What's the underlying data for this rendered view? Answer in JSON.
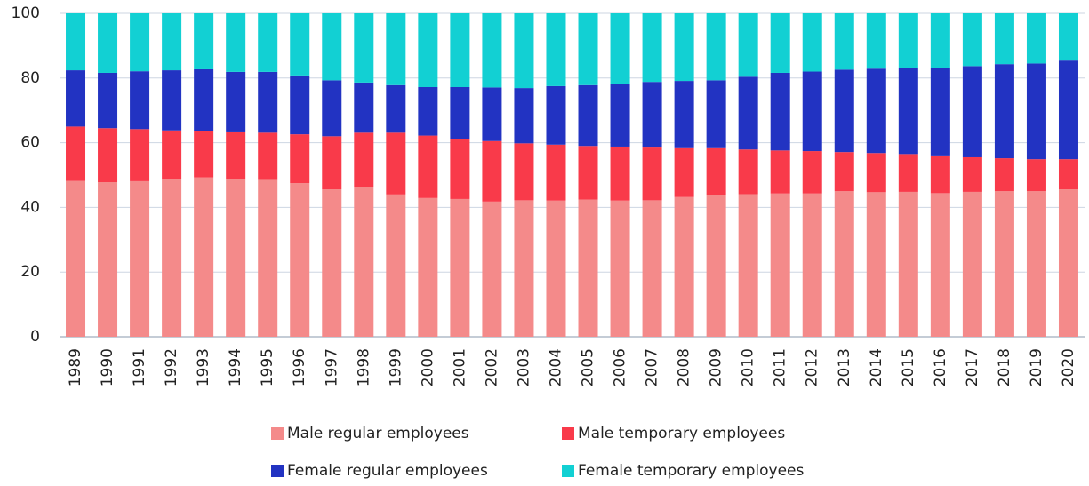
{
  "chart_data": {
    "type": "stacked_bar",
    "categories": [
      "1989",
      "1990",
      "1991",
      "1992",
      "1993",
      "1994",
      "1995",
      "1996",
      "1997",
      "1998",
      "1999",
      "2000",
      "2001",
      "2002",
      "2003",
      "2004",
      "2005",
      "2006",
      "2007",
      "2008",
      "2009",
      "2010",
      "2011",
      "2012",
      "2013",
      "2014",
      "2015",
      "2016",
      "2017",
      "2018",
      "2019",
      "2020"
    ],
    "series": [
      {
        "name": "Male regular employees",
        "color": "#f48a8a",
        "values": [
          48.2,
          47.8,
          48.1,
          48.8,
          49.3,
          48.7,
          48.5,
          47.5,
          45.6,
          46.2,
          44.0,
          42.9,
          42.6,
          41.8,
          42.2,
          42.1,
          42.4,
          42.1,
          42.2,
          43.2,
          43.8,
          44.1,
          44.3,
          44.3,
          45.0,
          44.7,
          44.8,
          44.4,
          44.8,
          45.0,
          45.0,
          45.6
        ]
      },
      {
        "name": "Male temporary employees",
        "color": "#f93a4a",
        "values": [
          16.8,
          16.7,
          16.1,
          15.0,
          14.3,
          14.5,
          14.6,
          15.1,
          16.4,
          16.9,
          19.1,
          19.3,
          18.4,
          18.7,
          17.6,
          17.3,
          16.6,
          16.7,
          16.3,
          15.1,
          14.5,
          13.8,
          13.3,
          13.1,
          12.1,
          12.1,
          11.7,
          11.4,
          10.7,
          10.2,
          9.9,
          9.3
        ]
      },
      {
        "name": "Female regular employees",
        "color": "#2233c2",
        "values": [
          17.4,
          17.1,
          17.9,
          18.6,
          19.1,
          18.7,
          18.8,
          18.2,
          17.3,
          15.5,
          14.7,
          15.0,
          16.2,
          16.6,
          17.1,
          18.1,
          18.8,
          19.4,
          20.3,
          20.8,
          21.0,
          22.5,
          24.0,
          24.6,
          25.5,
          26.1,
          26.5,
          27.2,
          28.2,
          29.1,
          29.6,
          30.5
        ]
      },
      {
        "name": "Female temporary employees",
        "color": "#12d0d3",
        "values": [
          17.6,
          18.4,
          17.9,
          17.6,
          17.3,
          18.1,
          18.1,
          19.2,
          20.7,
          21.4,
          22.2,
          22.8,
          22.8,
          22.9,
          23.1,
          22.5,
          22.2,
          21.8,
          21.2,
          20.9,
          20.7,
          19.6,
          18.4,
          18.0,
          17.4,
          17.1,
          17.0,
          17.0,
          16.3,
          15.7,
          15.5,
          14.6
        ]
      }
    ],
    "ylim": [
      0,
      100
    ],
    "yticks": [
      0,
      20,
      40,
      60,
      80,
      100
    ],
    "grid": true
  }
}
